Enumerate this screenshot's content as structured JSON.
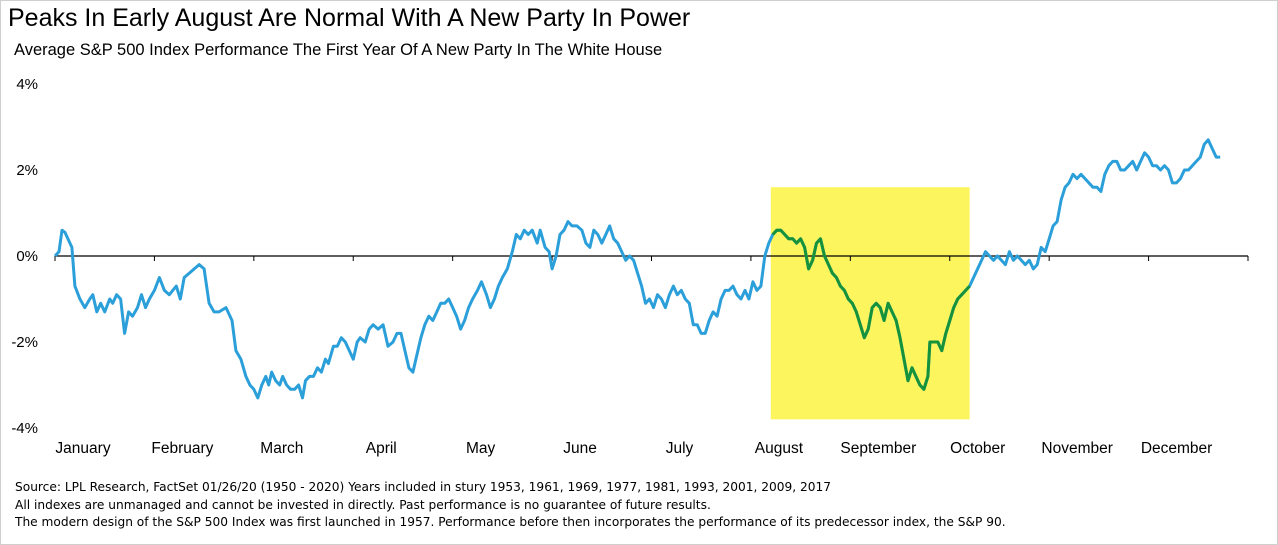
{
  "title": "Peaks In Early August Are Normal With A New Party In Power",
  "subtitle": "Average S&P 500 Index Performance The First Year Of A New Party In The White House",
  "notes": [
    "Source: LPL Research, FactSet 01/26/20 (1950 - 2020)    Years included in stury 1953, 1961, 1969, 1977, 1981, 1993, 2001, 2009, 2017",
    "All indexes are unmanaged and cannot be invested in directly. Past performance is no guarantee of future results.",
    "The modern design of the S&P 500 Index was first launched in 1957. Performance before then incorporates the performance of its  predecessor index, the S&P 90."
  ],
  "colors": {
    "line": "#2b9fd9",
    "highlight_line": "#16923a",
    "highlight_fill": "#fdf55e",
    "axis": "#000000"
  },
  "chart_data": {
    "type": "line",
    "x_unit": "month of year (0 = start of January, 12 = end of December)",
    "x_tick_labels": [
      "January",
      "February",
      "March",
      "April",
      "May",
      "June",
      "July",
      "August",
      "September",
      "October",
      "November",
      "December"
    ],
    "y_tick_labels": [
      "4%",
      "2%",
      "0%",
      "-2%",
      "-4%"
    ],
    "y_tick_values": [
      4,
      2,
      0,
      -2,
      -4
    ],
    "ylim": [
      -4,
      4
    ],
    "xlim": [
      0,
      12
    ],
    "grid": false,
    "highlight": {
      "x_start": 7.2,
      "x_end": 9.2,
      "ylow": -3.8,
      "yhigh": 1.6
    },
    "series": [
      {
        "values": [
          [
            0.0,
            0.0
          ],
          [
            0.04,
            0.1
          ],
          [
            0.07,
            0.6
          ],
          [
            0.1,
            0.55
          ],
          [
            0.13,
            0.4
          ],
          [
            0.17,
            0.2
          ],
          [
            0.2,
            -0.7
          ],
          [
            0.25,
            -1.0
          ],
          [
            0.3,
            -1.2
          ],
          [
            0.35,
            -1.0
          ],
          [
            0.38,
            -0.9
          ],
          [
            0.42,
            -1.3
          ],
          [
            0.46,
            -1.1
          ],
          [
            0.5,
            -1.3
          ],
          [
            0.55,
            -1.0
          ],
          [
            0.58,
            -1.1
          ],
          [
            0.62,
            -0.9
          ],
          [
            0.66,
            -1.0
          ],
          [
            0.7,
            -1.8
          ],
          [
            0.74,
            -1.3
          ],
          [
            0.78,
            -1.4
          ],
          [
            0.83,
            -1.2
          ],
          [
            0.87,
            -0.9
          ],
          [
            0.91,
            -1.2
          ],
          [
            0.95,
            -1.0
          ],
          [
            1.0,
            -0.8
          ],
          [
            1.05,
            -0.5
          ],
          [
            1.1,
            -0.8
          ],
          [
            1.15,
            -0.9
          ],
          [
            1.22,
            -0.7
          ],
          [
            1.26,
            -1.0
          ],
          [
            1.3,
            -0.5
          ],
          [
            1.35,
            -0.4
          ],
          [
            1.4,
            -0.3
          ],
          [
            1.45,
            -0.2
          ],
          [
            1.5,
            -0.3
          ],
          [
            1.55,
            -1.1
          ],
          [
            1.6,
            -1.3
          ],
          [
            1.65,
            -1.3
          ],
          [
            1.72,
            -1.2
          ],
          [
            1.78,
            -1.5
          ],
          [
            1.82,
            -2.2
          ],
          [
            1.87,
            -2.4
          ],
          [
            1.92,
            -2.8
          ],
          [
            1.96,
            -3.0
          ],
          [
            2.0,
            -3.1
          ],
          [
            2.04,
            -3.3
          ],
          [
            2.08,
            -3.0
          ],
          [
            2.12,
            -2.8
          ],
          [
            2.15,
            -3.0
          ],
          [
            2.18,
            -2.7
          ],
          [
            2.22,
            -2.9
          ],
          [
            2.26,
            -3.0
          ],
          [
            2.29,
            -2.8
          ],
          [
            2.33,
            -3.0
          ],
          [
            2.37,
            -3.1
          ],
          [
            2.41,
            -3.1
          ],
          [
            2.45,
            -3.0
          ],
          [
            2.49,
            -3.3
          ],
          [
            2.52,
            -2.9
          ],
          [
            2.56,
            -2.8
          ],
          [
            2.6,
            -2.8
          ],
          [
            2.64,
            -2.6
          ],
          [
            2.68,
            -2.7
          ],
          [
            2.72,
            -2.4
          ],
          [
            2.75,
            -2.5
          ],
          [
            2.8,
            -2.1
          ],
          [
            2.84,
            -2.1
          ],
          [
            2.88,
            -1.9
          ],
          [
            2.92,
            -2.0
          ],
          [
            2.96,
            -2.2
          ],
          [
            3.0,
            -2.4
          ],
          [
            3.04,
            -2.0
          ],
          [
            3.07,
            -1.9
          ],
          [
            3.12,
            -2.0
          ],
          [
            3.16,
            -1.7
          ],
          [
            3.2,
            -1.6
          ],
          [
            3.25,
            -1.7
          ],
          [
            3.3,
            -1.6
          ],
          [
            3.35,
            -2.1
          ],
          [
            3.4,
            -2.0
          ],
          [
            3.44,
            -1.8
          ],
          [
            3.48,
            -1.8
          ],
          [
            3.52,
            -2.2
          ],
          [
            3.56,
            -2.6
          ],
          [
            3.6,
            -2.7
          ],
          [
            3.64,
            -2.3
          ],
          [
            3.68,
            -1.9
          ],
          [
            3.72,
            -1.6
          ],
          [
            3.76,
            -1.4
          ],
          [
            3.8,
            -1.5
          ],
          [
            3.84,
            -1.3
          ],
          [
            3.88,
            -1.1
          ],
          [
            3.92,
            -1.1
          ],
          [
            3.96,
            -1.0
          ],
          [
            4.0,
            -1.2
          ],
          [
            4.04,
            -1.4
          ],
          [
            4.08,
            -1.7
          ],
          [
            4.12,
            -1.5
          ],
          [
            4.16,
            -1.2
          ],
          [
            4.2,
            -1.0
          ],
          [
            4.25,
            -0.8
          ],
          [
            4.29,
            -0.6
          ],
          [
            4.34,
            -0.9
          ],
          [
            4.38,
            -1.2
          ],
          [
            4.42,
            -1.0
          ],
          [
            4.46,
            -0.7
          ],
          [
            4.5,
            -0.5
          ],
          [
            4.55,
            -0.3
          ],
          [
            4.6,
            0.1
          ],
          [
            4.64,
            0.5
          ],
          [
            4.68,
            0.4
          ],
          [
            4.72,
            0.6
          ],
          [
            4.76,
            0.5
          ],
          [
            4.8,
            0.6
          ],
          [
            4.85,
            0.3
          ],
          [
            4.88,
            0.6
          ],
          [
            4.93,
            0.2
          ],
          [
            4.97,
            0.1
          ],
          [
            5.0,
            -0.3
          ],
          [
            5.04,
            0.0
          ],
          [
            5.08,
            0.5
          ],
          [
            5.12,
            0.6
          ],
          [
            5.16,
            0.8
          ],
          [
            5.2,
            0.7
          ],
          [
            5.25,
            0.7
          ],
          [
            5.3,
            0.6
          ],
          [
            5.34,
            0.3
          ],
          [
            5.38,
            0.2
          ],
          [
            5.42,
            0.6
          ],
          [
            5.46,
            0.5
          ],
          [
            5.5,
            0.3
          ],
          [
            5.54,
            0.5
          ],
          [
            5.58,
            0.7
          ],
          [
            5.62,
            0.4
          ],
          [
            5.66,
            0.3
          ],
          [
            5.7,
            0.1
          ],
          [
            5.74,
            -0.1
          ],
          [
            5.78,
            0.0
          ],
          [
            5.82,
            -0.1
          ],
          [
            5.86,
            -0.4
          ],
          [
            5.9,
            -0.7
          ],
          [
            5.94,
            -1.1
          ],
          [
            5.98,
            -1.0
          ],
          [
            6.02,
            -1.2
          ],
          [
            6.06,
            -0.9
          ],
          [
            6.1,
            -1.0
          ],
          [
            6.14,
            -1.2
          ],
          [
            6.18,
            -0.9
          ],
          [
            6.22,
            -0.7
          ],
          [
            6.26,
            -0.9
          ],
          [
            6.3,
            -0.8
          ],
          [
            6.34,
            -1.0
          ],
          [
            6.38,
            -1.1
          ],
          [
            6.42,
            -1.6
          ],
          [
            6.46,
            -1.6
          ],
          [
            6.5,
            -1.8
          ],
          [
            6.54,
            -1.8
          ],
          [
            6.58,
            -1.5
          ],
          [
            6.62,
            -1.3
          ],
          [
            6.66,
            -1.4
          ],
          [
            6.7,
            -1.0
          ],
          [
            6.74,
            -0.8
          ],
          [
            6.78,
            -0.8
          ],
          [
            6.82,
            -0.7
          ],
          [
            6.86,
            -0.9
          ],
          [
            6.9,
            -1.0
          ],
          [
            6.94,
            -0.8
          ],
          [
            6.98,
            -1.0
          ],
          [
            7.02,
            -0.6
          ],
          [
            7.06,
            -0.8
          ],
          [
            7.1,
            -0.7
          ],
          [
            7.14,
            0.0
          ],
          [
            7.18,
            0.3
          ],
          [
            7.22,
            0.5
          ],
          [
            7.26,
            0.6
          ],
          [
            7.3,
            0.6
          ],
          [
            7.34,
            0.5
          ],
          [
            7.38,
            0.4
          ],
          [
            7.42,
            0.4
          ],
          [
            7.46,
            0.3
          ],
          [
            7.5,
            0.4
          ],
          [
            7.54,
            0.2
          ],
          [
            7.58,
            -0.3
          ],
          [
            7.62,
            -0.1
          ],
          [
            7.66,
            0.3
          ],
          [
            7.7,
            0.4
          ],
          [
            7.74,
            0.0
          ],
          [
            7.78,
            -0.2
          ],
          [
            7.82,
            -0.4
          ],
          [
            7.86,
            -0.5
          ],
          [
            7.9,
            -0.7
          ],
          [
            7.94,
            -0.8
          ],
          [
            7.98,
            -1.0
          ],
          [
            8.02,
            -1.1
          ],
          [
            8.06,
            -1.3
          ],
          [
            8.1,
            -1.6
          ],
          [
            8.14,
            -1.9
          ],
          [
            8.18,
            -1.7
          ],
          [
            8.22,
            -1.2
          ],
          [
            8.26,
            -1.1
          ],
          [
            8.3,
            -1.2
          ],
          [
            8.34,
            -1.5
          ],
          [
            8.38,
            -1.1
          ],
          [
            8.42,
            -1.3
          ],
          [
            8.46,
            -1.5
          ],
          [
            8.5,
            -1.9
          ],
          [
            8.54,
            -2.4
          ],
          [
            8.58,
            -2.9
          ],
          [
            8.62,
            -2.6
          ],
          [
            8.66,
            -2.8
          ],
          [
            8.7,
            -3.0
          ],
          [
            8.74,
            -3.1
          ],
          [
            8.78,
            -2.8
          ],
          [
            8.8,
            -2.0
          ],
          [
            8.84,
            -2.0
          ],
          [
            8.88,
            -2.0
          ],
          [
            8.92,
            -2.2
          ],
          [
            8.96,
            -1.8
          ],
          [
            9.0,
            -1.5
          ],
          [
            9.04,
            -1.2
          ],
          [
            9.08,
            -1.0
          ],
          [
            9.12,
            -0.9
          ],
          [
            9.16,
            -0.8
          ],
          [
            9.2,
            -0.7
          ],
          [
            9.24,
            -0.5
          ],
          [
            9.28,
            -0.3
          ],
          [
            9.32,
            -0.1
          ],
          [
            9.36,
            0.1
          ],
          [
            9.4,
            0.0
          ],
          [
            9.44,
            -0.1
          ],
          [
            9.48,
            0.0
          ],
          [
            9.52,
            -0.1
          ],
          [
            9.56,
            -0.2
          ],
          [
            9.6,
            0.1
          ],
          [
            9.64,
            -0.1
          ],
          [
            9.68,
            0.0
          ],
          [
            9.72,
            -0.1
          ],
          [
            9.76,
            -0.2
          ],
          [
            9.8,
            -0.1
          ],
          [
            9.84,
            -0.3
          ],
          [
            9.88,
            -0.2
          ],
          [
            9.92,
            0.2
          ],
          [
            9.96,
            0.1
          ],
          [
            10.0,
            0.4
          ],
          [
            10.04,
            0.7
          ],
          [
            10.08,
            0.8
          ],
          [
            10.12,
            1.3
          ],
          [
            10.16,
            1.6
          ],
          [
            10.2,
            1.7
          ],
          [
            10.24,
            1.9
          ],
          [
            10.28,
            1.8
          ],
          [
            10.32,
            1.9
          ],
          [
            10.36,
            1.8
          ],
          [
            10.4,
            1.7
          ],
          [
            10.44,
            1.6
          ],
          [
            10.48,
            1.6
          ],
          [
            10.52,
            1.5
          ],
          [
            10.56,
            1.9
          ],
          [
            10.6,
            2.1
          ],
          [
            10.64,
            2.2
          ],
          [
            10.68,
            2.2
          ],
          [
            10.72,
            2.0
          ],
          [
            10.76,
            2.0
          ],
          [
            10.8,
            2.1
          ],
          [
            10.84,
            2.2
          ],
          [
            10.88,
            2.0
          ],
          [
            10.92,
            2.2
          ],
          [
            10.96,
            2.4
          ],
          [
            11.0,
            2.3
          ],
          [
            11.04,
            2.1
          ],
          [
            11.08,
            2.1
          ],
          [
            11.12,
            2.0
          ],
          [
            11.16,
            2.1
          ],
          [
            11.2,
            2.0
          ],
          [
            11.24,
            1.7
          ],
          [
            11.28,
            1.7
          ],
          [
            11.32,
            1.8
          ],
          [
            11.36,
            2.0
          ],
          [
            11.4,
            2.0
          ],
          [
            11.44,
            2.1
          ],
          [
            11.48,
            2.2
          ],
          [
            11.52,
            2.3
          ],
          [
            11.56,
            2.6
          ],
          [
            11.6,
            2.7
          ],
          [
            11.64,
            2.5
          ],
          [
            11.68,
            2.3
          ],
          [
            11.72,
            2.3
          ]
        ]
      }
    ]
  }
}
